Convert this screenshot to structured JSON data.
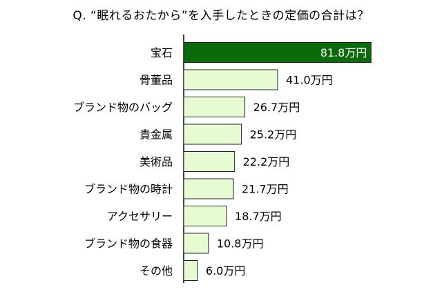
{
  "chart_data": {
    "type": "bar",
    "orientation": "horizontal",
    "title": "Q. “眠れるおたから”を入手したときの定価の合計は？",
    "categories": [
      "宝石",
      "骨董品",
      "ブランド物のバッグ",
      "貴金属",
      "美術品",
      "ブランド物の時計",
      "アクセサリー",
      "ブランド物の食器",
      "その他"
    ],
    "values": [
      81.8,
      41.0,
      26.7,
      25.2,
      22.2,
      21.7,
      18.7,
      10.8,
      6.0
    ],
    "value_labels": [
      "81.8万円",
      "41.0万円",
      "26.7万円",
      "25.2万円",
      "22.2万円",
      "21.7万円",
      "18.7万円",
      "10.8万円",
      "6.0万円"
    ],
    "unit": "万円",
    "xlim": [
      0,
      82
    ],
    "grid": false,
    "colors": {
      "highlight_fill": "#0b6b0b",
      "bar_fill": "#e6fbd2",
      "bar_stroke": "#222222",
      "axis": "#000000",
      "highlight_label": "#ffffff",
      "label": "#000000"
    }
  }
}
